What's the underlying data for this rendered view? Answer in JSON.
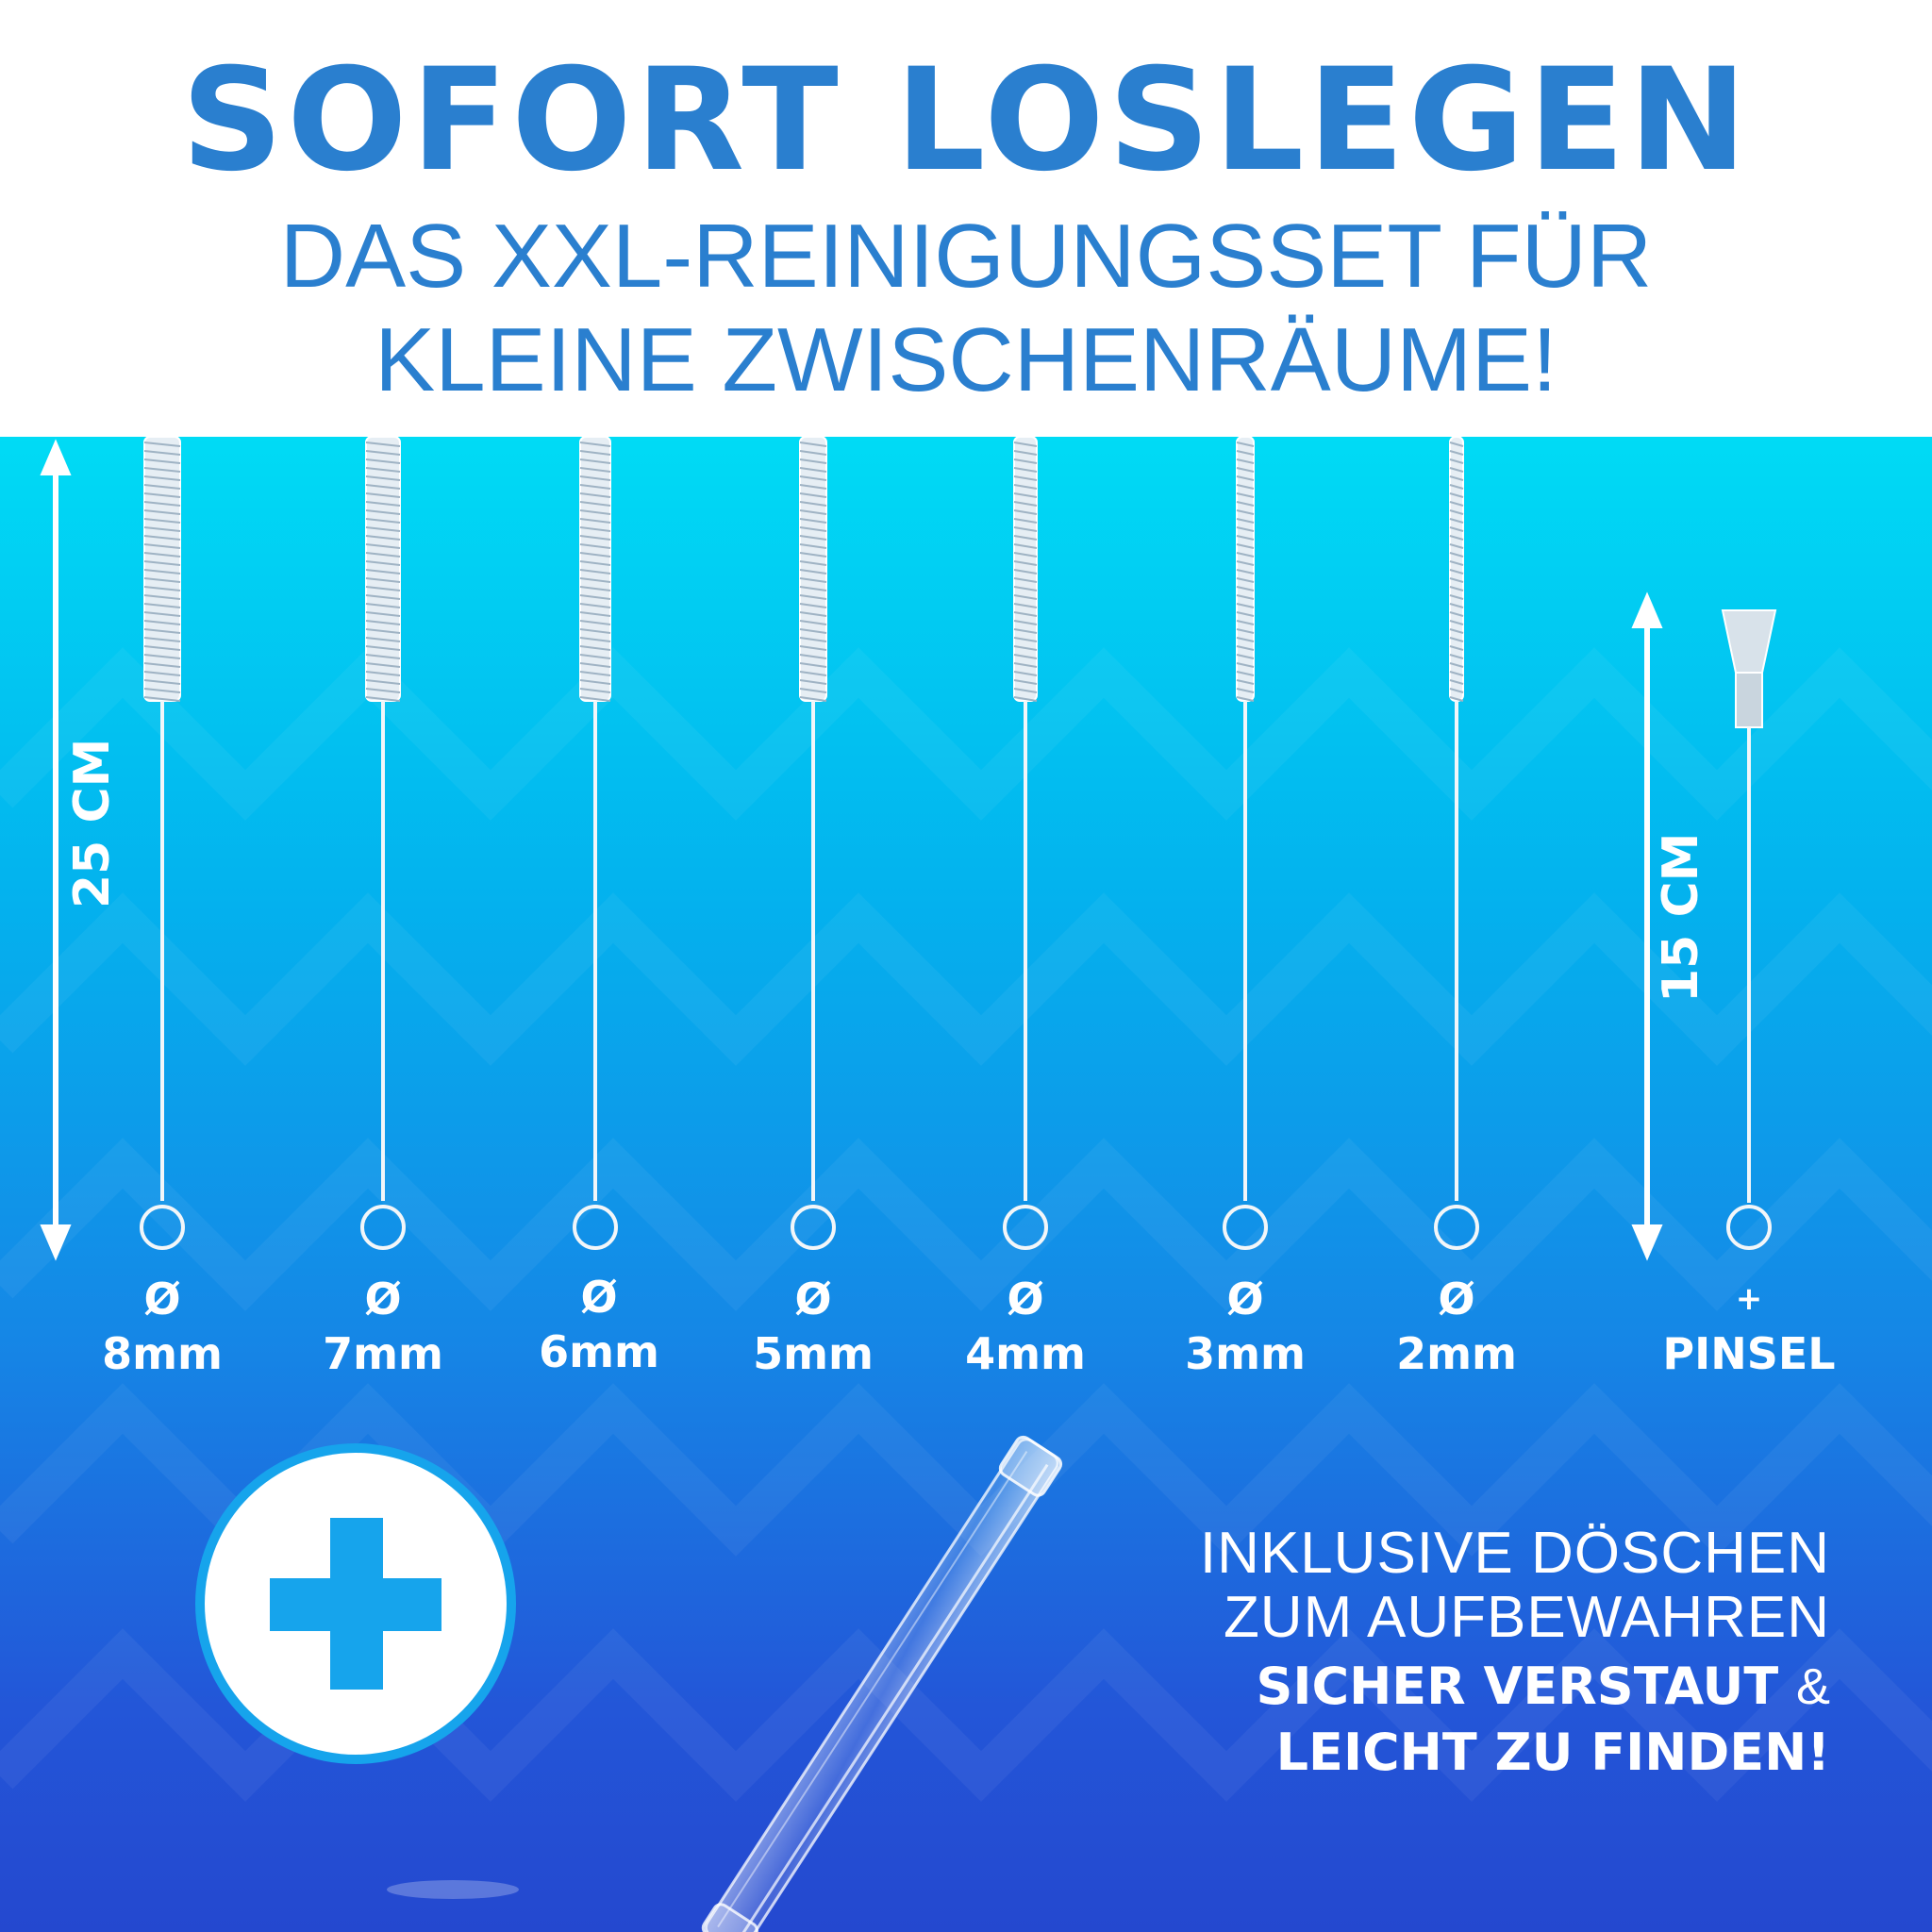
{
  "header": {
    "title": "SOFORT LOSLEGEN",
    "subtitle_line1": "DAS XXL-REINIGUNGSSET FÜR",
    "subtitle_line2": "KLEINE ZWISCHENRÄUME!"
  },
  "measurements": {
    "long": "25 CM",
    "short": "15 CM"
  },
  "brushes": [
    {
      "symbol": "Ø",
      "size": "8mm"
    },
    {
      "symbol": "Ø",
      "size": "7mm"
    },
    {
      "symbol": "Ø",
      "size": "6mm"
    },
    {
      "symbol": "Ø",
      "size": "5mm"
    },
    {
      "symbol": "Ø",
      "size": "4mm"
    },
    {
      "symbol": "Ø",
      "size": "3mm"
    },
    {
      "symbol": "Ø",
      "size": "2mm"
    }
  ],
  "extra": {
    "symbol": "+",
    "label": "PINSEL"
  },
  "info": {
    "line1": "INKLUSIVE DÖSCHEN",
    "line2": "ZUM AUFBEWAHREN",
    "bold_line1": "SICHER VERSTAUT",
    "ampersand": "&",
    "bold_line2": "LEICHT ZU FINDEN!"
  },
  "colors": {
    "brand_blue": "#2a7fcf",
    "plus_blue": "#16a4ec"
  }
}
